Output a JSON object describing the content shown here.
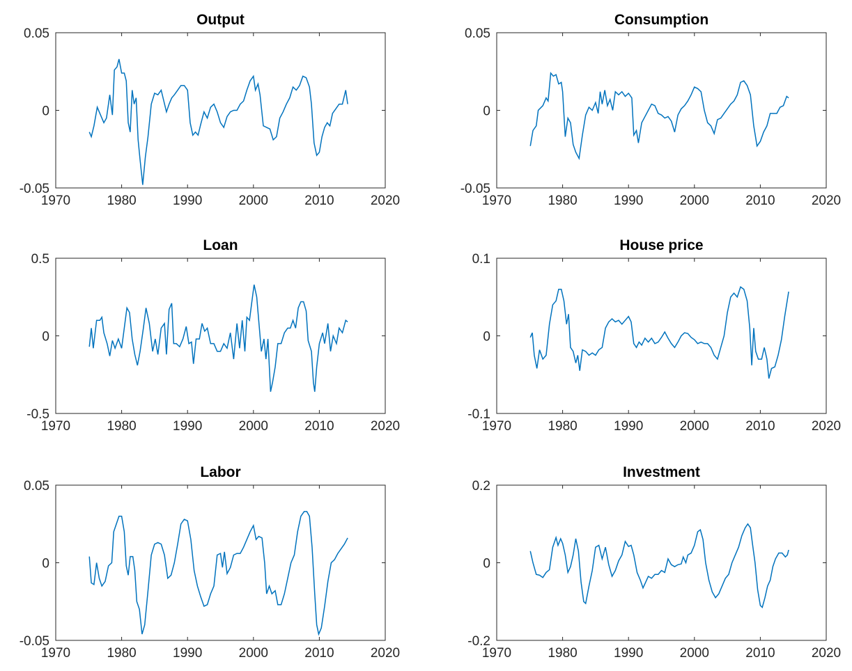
{
  "chart_data": [
    {
      "type": "line",
      "title": "Output",
      "color": "#0072BD",
      "xlim": [
        1970,
        2020
      ],
      "xticks": [
        1970,
        1980,
        1990,
        2000,
        2010,
        2020
      ],
      "ylim": [
        -0.05,
        0.05
      ],
      "yticks": [
        -0.05,
        0,
        0.05
      ],
      "x": [
        1975.1,
        1975.4,
        1975.8,
        1976.3,
        1976.8,
        1977.3,
        1977.7,
        1978.2,
        1978.6,
        1978.9,
        1979.3,
        1979.6,
        1980,
        1980.4,
        1980.7,
        1981,
        1981.3,
        1981.6,
        1981.9,
        1982.2,
        1982.5,
        1982.8,
        1983.2,
        1983.6,
        1984,
        1984.5,
        1985,
        1985.5,
        1986,
        1986.4,
        1986.8,
        1987.2,
        1987.6,
        1988,
        1988.5,
        1989,
        1989.5,
        1990,
        1990.4,
        1990.8,
        1991.2,
        1991.6,
        1992,
        1992.5,
        1993,
        1993.5,
        1994,
        1994.5,
        1995,
        1995.5,
        1996,
        1996.5,
        1997,
        1997.5,
        1998,
        1998.5,
        1999,
        1999.5,
        2000,
        2000.3,
        2000.7,
        2001,
        2001.5,
        2002,
        2002.5,
        2003,
        2003.5,
        2004,
        2004.5,
        2005,
        2005.5,
        2006,
        2006.5,
        2007,
        2007.5,
        2008,
        2008.5,
        2008.8,
        2009.2,
        2009.6,
        2010,
        2010.4,
        2010.8,
        2011.2,
        2011.6,
        2012,
        2012.5,
        2013,
        2013.5,
        2014,
        2014.3
      ],
      "values": [
        -0.014,
        -0.017,
        -0.01,
        0.002,
        -0.003,
        -0.008,
        -0.005,
        0.01,
        -0.003,
        0.026,
        0.028,
        0.033,
        0.024,
        0.024,
        0.019,
        -0.008,
        -0.014,
        0.013,
        0.004,
        0.008,
        -0.019,
        -0.032,
        -0.048,
        -0.03,
        -0.017,
        0.004,
        0.011,
        0.01,
        0.013,
        0.006,
        -0.001,
        0.004,
        0.008,
        0.01,
        0.013,
        0.016,
        0.016,
        0.013,
        -0.008,
        -0.016,
        -0.014,
        -0.016,
        -0.009,
        -0.001,
        -0.005,
        0.002,
        0.004,
        -0.001,
        -0.008,
        -0.011,
        -0.004,
        -0.001,
        0,
        0,
        0.004,
        0.006,
        0.013,
        0.019,
        0.022,
        0.013,
        0.017,
        0.01,
        -0.01,
        -0.011,
        -0.012,
        -0.019,
        -0.017,
        -0.005,
        -0.001,
        0.004,
        0.008,
        0.015,
        0.013,
        0.016,
        0.022,
        0.021,
        0.015,
        0.004,
        -0.021,
        -0.029,
        -0.027,
        -0.017,
        -0.011,
        -0.008,
        -0.01,
        -0.002,
        0.001,
        0.004,
        0.004,
        0.013,
        0.004
      ]
    },
    {
      "type": "line",
      "title": "Consumption",
      "color": "#0072BD",
      "xlim": [
        1970,
        2020
      ],
      "xticks": [
        1970,
        1980,
        1990,
        2000,
        2010,
        2020
      ],
      "ylim": [
        -0.05,
        0.05
      ],
      "yticks": [
        -0.05,
        0,
        0.05
      ],
      "x": [
        1975.1,
        1975.5,
        1976,
        1976.3,
        1977,
        1977.5,
        1977.8,
        1978.2,
        1978.6,
        1979,
        1979.4,
        1979.8,
        1980,
        1980.4,
        1980.8,
        1981.2,
        1981.6,
        1982,
        1982.5,
        1983,
        1983.5,
        1984,
        1984.5,
        1985,
        1985.4,
        1985.7,
        1986,
        1986.4,
        1986.8,
        1987.2,
        1987.6,
        1988,
        1988.5,
        1989,
        1989.5,
        1990,
        1990.5,
        1990.8,
        1991.2,
        1991.5,
        1992,
        1992.5,
        1993,
        1993.5,
        1994,
        1994.5,
        1995,
        1995.5,
        1996,
        1996.5,
        1997,
        1997.5,
        1998,
        1998.5,
        1999,
        1999.5,
        2000,
        2000.5,
        2001,
        2001.5,
        2002,
        2002.5,
        2003,
        2003.5,
        2004,
        2004.5,
        2005,
        2005.5,
        2006,
        2006.5,
        2007,
        2007.5,
        2008,
        2008.5,
        2009,
        2009.5,
        2010,
        2010.5,
        2011,
        2011.5,
        2012,
        2012.5,
        2013,
        2013.5,
        2014,
        2014.3
      ],
      "values": [
        -0.023,
        -0.013,
        -0.01,
        0,
        0.003,
        0.008,
        0.006,
        0.024,
        0.022,
        0.023,
        0.017,
        0.018,
        0.012,
        -0.017,
        -0.005,
        -0.008,
        -0.022,
        -0.027,
        -0.031,
        -0.016,
        -0.003,
        0.002,
        0,
        0.005,
        -0.002,
        0.012,
        0.004,
        0.013,
        0.003,
        0.007,
        0,
        0.012,
        0.01,
        0.012,
        0.009,
        0.011,
        0.008,
        -0.016,
        -0.013,
        -0.021,
        -0.008,
        -0.004,
        0,
        0.004,
        0.003,
        -0.002,
        -0.003,
        -0.005,
        -0.004,
        -0.007,
        -0.014,
        -0.003,
        0.001,
        0.003,
        0.006,
        0.01,
        0.015,
        0.014,
        0.012,
        0,
        -0.008,
        -0.01,
        -0.015,
        -0.006,
        -0.005,
        -0.002,
        0.001,
        0.004,
        0.006,
        0.01,
        0.018,
        0.019,
        0.016,
        0.01,
        -0.01,
        -0.023,
        -0.02,
        -0.014,
        -0.01,
        -0.002,
        -0.002,
        -0.002,
        0.002,
        0.003,
        0.009,
        0.008
      ]
    },
    {
      "type": "line",
      "title": "Loan",
      "color": "#0072BD",
      "xlim": [
        1970,
        2020
      ],
      "xticks": [
        1970,
        1980,
        1990,
        2000,
        2010,
        2020
      ],
      "ylim": [
        -0.5,
        0.5
      ],
      "yticks": [
        -0.5,
        0,
        0.5
      ],
      "x": [
        1975.1,
        1975.4,
        1975.7,
        1976.2,
        1976.7,
        1977,
        1977.3,
        1977.8,
        1978.2,
        1978.6,
        1979,
        1979.5,
        1980,
        1980.4,
        1980.8,
        1981.2,
        1981.6,
        1982,
        1982.4,
        1982.8,
        1983.3,
        1983.7,
        1984.2,
        1984.7,
        1985.1,
        1985.5,
        1986,
        1986.5,
        1986.8,
        1987.2,
        1987.6,
        1987.9,
        1988.3,
        1988.8,
        1989.3,
        1989.8,
        1990.2,
        1990.6,
        1990.9,
        1991.3,
        1991.8,
        1992.2,
        1992.6,
        1993,
        1993.5,
        1994,
        1994.5,
        1995,
        1995.5,
        1996,
        1996.5,
        1997,
        1997.5,
        1997.9,
        1998.3,
        1998.7,
        1999,
        1999.4,
        1999.7,
        2000.1,
        2000.5,
        2000.9,
        2001.2,
        2001.6,
        2001.9,
        2002.2,
        2002.6,
        2002.9,
        2003.3,
        2003.7,
        2004.2,
        2004.7,
        2005.2,
        2005.6,
        2006,
        2006.4,
        2006.8,
        2007.2,
        2007.6,
        2008,
        2008.3,
        2008.8,
        2009.1,
        2009.3,
        2009.6,
        2010,
        2010.5,
        2010.8,
        2011.3,
        2011.7,
        2012.1,
        2012.6,
        2013,
        2013.5,
        2014,
        2014.3
      ],
      "values": [
        -0.07,
        0.05,
        -0.08,
        0.1,
        0.1,
        0.12,
        0.02,
        -0.05,
        -0.13,
        -0.03,
        -0.08,
        -0.02,
        -0.08,
        0.05,
        0.18,
        0.15,
        -0.02,
        -0.12,
        -0.19,
        -0.1,
        0.05,
        0.18,
        0.08,
        -0.1,
        -0.02,
        -0.12,
        0.05,
        0.08,
        -0.12,
        0.17,
        0.21,
        -0.05,
        -0.05,
        -0.07,
        -0.02,
        0.06,
        -0.05,
        -0.04,
        -0.18,
        -0.02,
        -0.02,
        0.08,
        0.03,
        0.05,
        -0.05,
        -0.05,
        -0.1,
        -0.1,
        -0.05,
        -0.08,
        0.02,
        -0.15,
        0.08,
        -0.08,
        0.1,
        -0.1,
        0.12,
        0.1,
        0.2,
        0.33,
        0.25,
        0.05,
        -0.1,
        -0.02,
        -0.15,
        -0.02,
        -0.36,
        -0.3,
        -0.2,
        -0.05,
        -0.05,
        0.02,
        0.05,
        0.05,
        0.1,
        0.05,
        0.18,
        0.22,
        0.22,
        0.16,
        -0.03,
        -0.1,
        -0.3,
        -0.36,
        -0.2,
        -0.05,
        0.02,
        -0.05,
        0.08,
        -0.1,
        0,
        -0.05,
        0.05,
        0.02,
        0.1,
        0.09
      ]
    },
    {
      "type": "line",
      "title": "House price",
      "color": "#0072BD",
      "xlim": [
        1970,
        2020
      ],
      "xticks": [
        1970,
        1980,
        1990,
        2000,
        2010,
        2020
      ],
      "ylim": [
        -0.1,
        0.1
      ],
      "yticks": [
        -0.1,
        0,
        0.1
      ],
      "x": [
        1975.1,
        1975.4,
        1975.7,
        1976.1,
        1976.5,
        1977,
        1977.5,
        1978,
        1978.5,
        1979,
        1979.4,
        1979.8,
        1980.2,
        1980.6,
        1980.9,
        1981.2,
        1981.6,
        1982,
        1982.3,
        1982.6,
        1983,
        1983.5,
        1984,
        1984.5,
        1985,
        1985.5,
        1986,
        1986.5,
        1987,
        1987.5,
        1988,
        1988.5,
        1989,
        1989.5,
        1990,
        1990.4,
        1990.8,
        1991.2,
        1991.6,
        1992,
        1992.5,
        1993,
        1993.5,
        1994,
        1994.5,
        1995,
        1995.5,
        1996,
        1996.5,
        1997,
        1997.5,
        1998,
        1998.5,
        1999,
        1999.5,
        2000,
        2000.5,
        2001,
        2001.5,
        2002,
        2002.5,
        2003,
        2003.5,
        2004,
        2004.5,
        2005,
        2005.5,
        2006,
        2006.5,
        2007,
        2007.5,
        2008,
        2008.4,
        2008.7,
        2009,
        2009.3,
        2009.7,
        2010.2,
        2010.6,
        2011,
        2011.3,
        2011.7,
        2012.2,
        2012.7,
        2013.2,
        2013.7,
        2014.3
      ],
      "values": [
        -0.002,
        0.004,
        -0.025,
        -0.042,
        -0.018,
        -0.03,
        -0.025,
        0.015,
        0.04,
        0.045,
        0.06,
        0.06,
        0.045,
        0.015,
        0.028,
        -0.015,
        -0.02,
        -0.035,
        -0.025,
        -0.045,
        -0.018,
        -0.02,
        -0.025,
        -0.022,
        -0.025,
        -0.018,
        -0.015,
        0.01,
        0.018,
        0.022,
        0.018,
        0.02,
        0.015,
        0.02,
        0.025,
        0.018,
        -0.01,
        -0.015,
        -0.008,
        -0.012,
        -0.003,
        -0.008,
        -0.003,
        -0.01,
        -0.008,
        -0.002,
        0.005,
        -0.003,
        -0.01,
        -0.015,
        -0.008,
        0,
        0.004,
        0.003,
        -0.002,
        -0.005,
        -0.01,
        -0.008,
        -0.01,
        -0.01,
        -0.015,
        -0.025,
        -0.03,
        -0.015,
        0,
        0.03,
        0.05,
        0.055,
        0.05,
        0.063,
        0.06,
        0.045,
        0.01,
        -0.038,
        0.01,
        -0.02,
        -0.03,
        -0.03,
        -0.015,
        -0.03,
        -0.055,
        -0.042,
        -0.04,
        -0.025,
        -0.005,
        0.025,
        0.057
      ]
    },
    {
      "type": "line",
      "title": "Labor",
      "color": "#0072BD",
      "xlim": [
        1970,
        2020
      ],
      "xticks": [
        1970,
        1980,
        1990,
        2000,
        2010,
        2020
      ],
      "ylim": [
        -0.05,
        0.05
      ],
      "yticks": [
        -0.05,
        0,
        0.05
      ],
      "x": [
        1975.1,
        1975.4,
        1975.8,
        1976.2,
        1976.6,
        1977,
        1977.5,
        1978,
        1978.5,
        1978.8,
        1979.2,
        1979.6,
        1980,
        1980.4,
        1980.7,
        1981,
        1981.3,
        1981.7,
        1982,
        1982.3,
        1982.7,
        1983.1,
        1983.5,
        1984,
        1984.5,
        1985,
        1985.5,
        1986,
        1986.5,
        1987,
        1987.5,
        1988,
        1988.5,
        1989,
        1989.5,
        1990,
        1990.5,
        1991,
        1991.5,
        1992,
        1992.5,
        1993,
        1993.5,
        1994,
        1994.5,
        1995,
        1995.3,
        1995.6,
        1996,
        1996.5,
        1997,
        1997.5,
        1998,
        1998.5,
        1999,
        1999.5,
        2000,
        2000.4,
        2000.8,
        2001.3,
        2001.7,
        2002,
        2002.4,
        2002.8,
        2003.3,
        2003.7,
        2004.2,
        2004.7,
        2005.2,
        2005.7,
        2006.2,
        2006.7,
        2007.2,
        2007.7,
        2008.1,
        2008.5,
        2008.9,
        2009.3,
        2009.6,
        2009.9,
        2010.3,
        2010.8,
        2011.3,
        2011.8,
        2012.3,
        2012.8,
        2013.3,
        2013.8,
        2014.3
      ],
      "values": [
        0.004,
        -0.013,
        -0.014,
        0,
        -0.01,
        -0.015,
        -0.012,
        -0.002,
        0,
        0.02,
        0.025,
        0.03,
        0.03,
        0.02,
        -0.002,
        -0.008,
        0.004,
        0.004,
        -0.005,
        -0.025,
        -0.03,
        -0.046,
        -0.04,
        -0.018,
        0.005,
        0.012,
        0.013,
        0.012,
        0.005,
        -0.01,
        -0.008,
        0,
        0.012,
        0.025,
        0.028,
        0.027,
        0.015,
        -0.005,
        -0.015,
        -0.022,
        -0.028,
        -0.027,
        -0.02,
        -0.015,
        0.005,
        0.006,
        -0.003,
        0.007,
        -0.007,
        -0.003,
        0.005,
        0.006,
        0.006,
        0.01,
        0.015,
        0.02,
        0.024,
        0.015,
        0.017,
        0.016,
        0,
        -0.02,
        -0.015,
        -0.02,
        -0.018,
        -0.027,
        -0.027,
        -0.02,
        -0.01,
        0,
        0.005,
        0.02,
        0.03,
        0.033,
        0.033,
        0.03,
        0.01,
        -0.02,
        -0.04,
        -0.046,
        -0.042,
        -0.028,
        -0.012,
        0,
        0.002,
        0.006,
        0.009,
        0.012,
        0.016
      ]
    },
    {
      "type": "line",
      "title": "Investment",
      "color": "#0072BD",
      "xlim": [
        1970,
        2020
      ],
      "xticks": [
        1970,
        1980,
        1990,
        2000,
        2010,
        2020
      ],
      "ylim": [
        -0.2,
        0.2
      ],
      "yticks": [
        -0.2,
        0,
        0.2
      ],
      "x": [
        1975.1,
        1975.5,
        1976,
        1976.5,
        1977,
        1977.5,
        1978,
        1978.5,
        1979,
        1979.3,
        1979.7,
        1980,
        1980.4,
        1980.8,
        1981.2,
        1981.6,
        1982,
        1982.4,
        1982.8,
        1983.2,
        1983.5,
        1984,
        1984.5,
        1985,
        1985.5,
        1986,
        1986.5,
        1987,
        1987.5,
        1988,
        1988.5,
        1989,
        1989.5,
        1990,
        1990.4,
        1990.8,
        1991.3,
        1991.8,
        1992.2,
        1992.6,
        1993,
        1993.5,
        1994,
        1994.5,
        1995,
        1995.5,
        1996,
        1996.5,
        1997,
        1997.5,
        1998,
        1998.3,
        1998.7,
        1999,
        1999.5,
        2000,
        2000.5,
        2000.9,
        2001.3,
        2001.7,
        2002.2,
        2002.7,
        2003.2,
        2003.7,
        2004.2,
        2004.7,
        2005.2,
        2005.7,
        2006.2,
        2006.7,
        2007.2,
        2007.7,
        2008.1,
        2008.5,
        2008.8,
        2009.2,
        2009.6,
        2010,
        2010.3,
        2010.7,
        2011.1,
        2011.5,
        2011.9,
        2012.3,
        2012.8,
        2013.3,
        2013.8,
        2014.1,
        2014.3
      ],
      "values": [
        0.03,
        0,
        -0.03,
        -0.032,
        -0.038,
        -0.025,
        -0.018,
        0.04,
        0.065,
        0.045,
        0.062,
        0.05,
        0.02,
        -0.025,
        -0.01,
        0.02,
        0.062,
        0.03,
        -0.05,
        -0.1,
        -0.105,
        -0.06,
        -0.02,
        0.04,
        0.045,
        0.01,
        0.04,
        -0.005,
        -0.035,
        -0.02,
        0.005,
        0.02,
        0.055,
        0.042,
        0.045,
        0.02,
        -0.025,
        -0.045,
        -0.065,
        -0.05,
        -0.035,
        -0.04,
        -0.03,
        -0.03,
        -0.02,
        -0.025,
        0.01,
        -0.005,
        -0.01,
        -0.005,
        -0.003,
        0.015,
        0,
        0.02,
        0.025,
        0.045,
        0.08,
        0.085,
        0.06,
        0,
        -0.045,
        -0.075,
        -0.09,
        -0.08,
        -0.06,
        -0.04,
        -0.03,
        0,
        0.02,
        0.04,
        0.07,
        0.09,
        0.1,
        0.09,
        0.05,
        0,
        -0.07,
        -0.11,
        -0.115,
        -0.09,
        -0.06,
        -0.045,
        -0.01,
        0.01,
        0.025,
        0.025,
        0.015,
        0.02,
        0.033
      ]
    }
  ]
}
